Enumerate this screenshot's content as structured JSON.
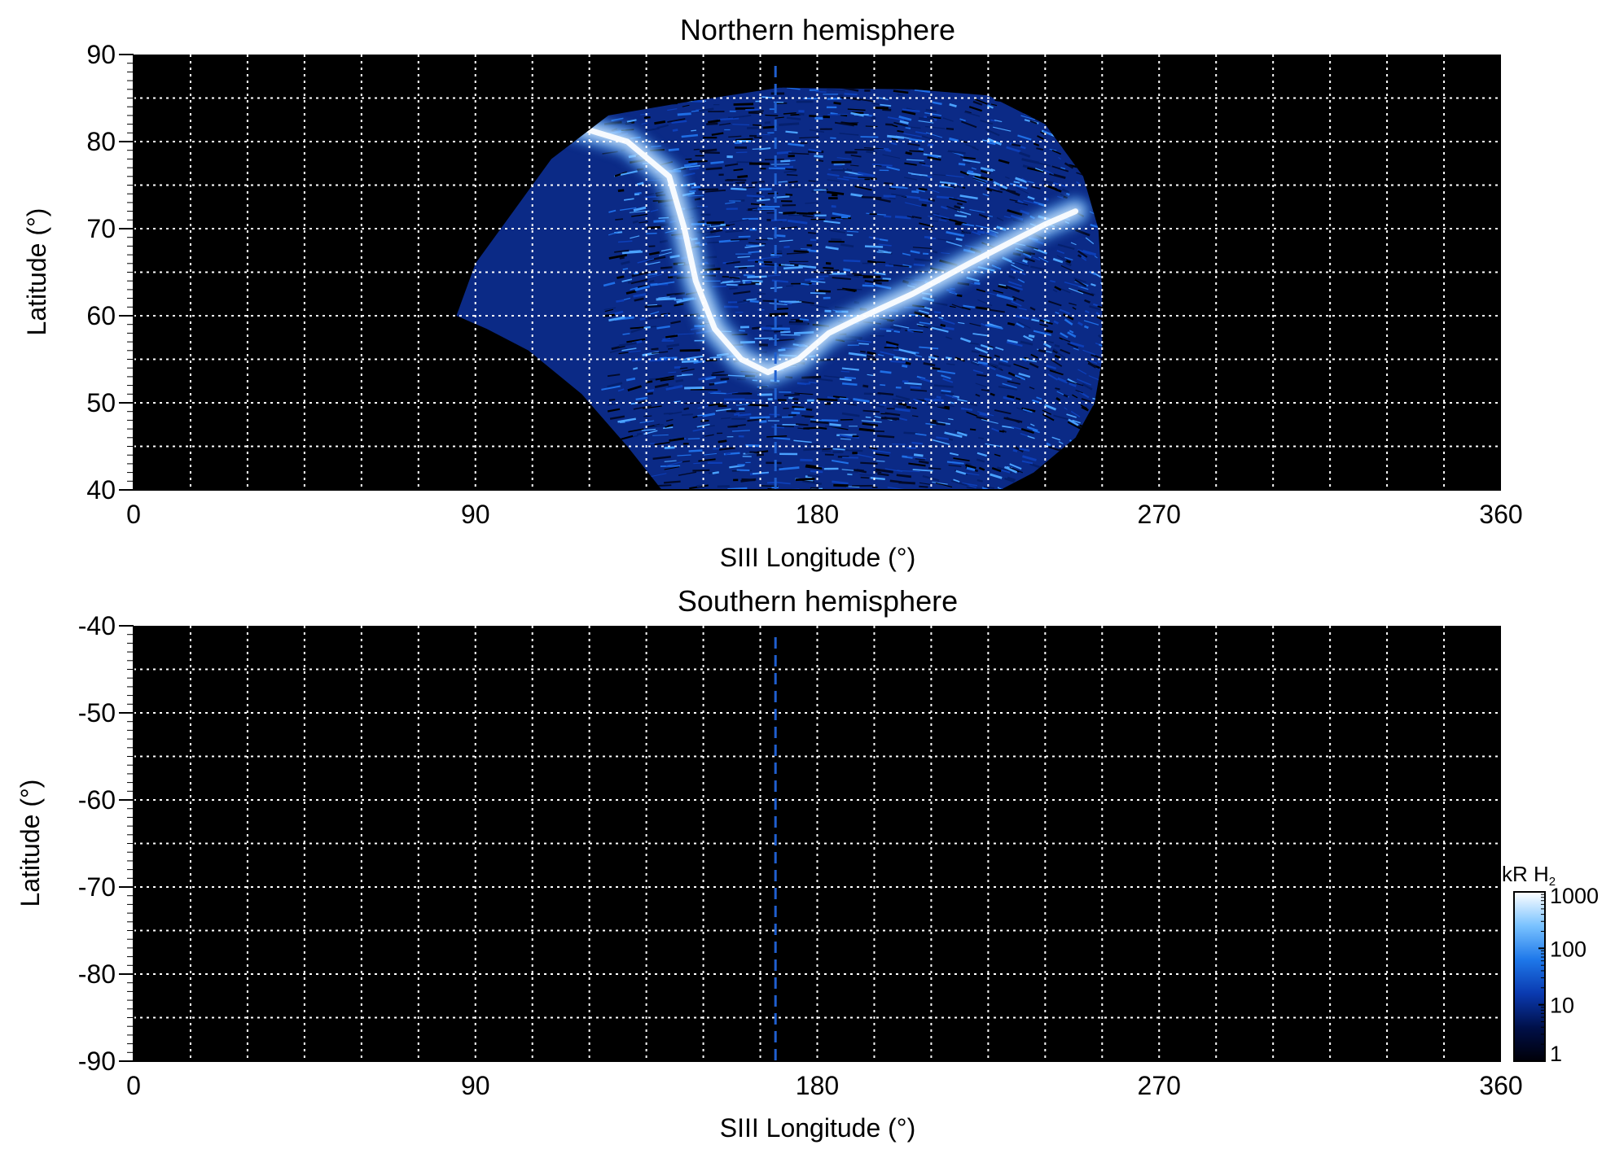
{
  "chart_data": [
    {
      "type": "heatmap",
      "title": "Northern hemisphere",
      "xlabel": "SIII Longitude (°)",
      "ylabel": "Latitude (°)",
      "xlim": [
        0,
        360
      ],
      "ylim": [
        40,
        90
      ],
      "xticks": [
        "0",
        "90",
        "180",
        "270",
        "360"
      ],
      "yticks": [
        "40",
        "50",
        "60",
        "70",
        "80",
        "90"
      ],
      "grid": "on",
      "grid_spacing_longitude_deg": 15,
      "grid_spacing_latitude_deg": 5,
      "dashed_meridian_longitude": 169,
      "image_extent": {
        "top_edge": [
          [
            145,
            84.5
          ],
          [
            170,
            86.2
          ],
          [
            205,
            86.0
          ],
          [
            225,
            85.3
          ]
        ],
        "right_edge": [
          [
            225,
            85.3
          ],
          [
            240,
            82.0
          ],
          [
            250,
            76.0
          ],
          [
            254,
            70.0
          ],
          [
            255,
            63.0
          ],
          [
            255,
            55.0
          ],
          [
            253,
            50.0
          ],
          [
            248,
            46.0
          ],
          [
            237,
            42.0
          ],
          [
            226,
            39.5
          ]
        ],
        "bottom_edge": [
          [
            226,
            39.5
          ],
          [
            140,
            39.5
          ]
        ],
        "left_edge": [
          [
            140,
            39.5
          ],
          [
            130,
            45.0
          ],
          [
            118,
            51.0
          ],
          [
            104,
            56.0
          ],
          [
            93,
            58.5
          ],
          [
            85,
            60.0
          ],
          [
            90,
            66.0
          ],
          [
            100,
            72.0
          ],
          [
            110,
            78.0
          ],
          [
            125,
            83.0
          ],
          [
            145,
            84.5
          ]
        ]
      },
      "main_oval": [
        [
          111,
          82.5
        ],
        [
          130,
          80.0
        ],
        [
          141,
          76.0
        ],
        [
          145,
          70.0
        ],
        [
          148,
          64.0
        ],
        [
          153,
          58.5
        ],
        [
          160,
          55.0
        ],
        [
          167,
          53.5
        ],
        [
          175,
          55.0
        ],
        [
          183,
          58.0
        ],
        [
          190,
          59.5
        ],
        [
          205,
          62.5
        ],
        [
          220,
          66.0
        ],
        [
          240,
          70.5
        ],
        [
          248,
          72.0
        ]
      ],
      "emission_unit": "kR H₂",
      "colorbar": {
        "label": "kR H₂",
        "scale": "log",
        "range": [
          1,
          1000
        ],
        "ticks": [
          "1000",
          "100",
          "10",
          "1"
        ]
      }
    },
    {
      "type": "heatmap",
      "title": "Southern hemisphere",
      "xlabel": "SIII Longitude (°)",
      "ylabel": "Latitude (°)",
      "xlim": [
        0,
        360
      ],
      "ylim": [
        -90,
        -40
      ],
      "xticks": [
        "0",
        "90",
        "180",
        "270",
        "360"
      ],
      "yticks": [
        "-40",
        "-50",
        "-60",
        "-70",
        "-80",
        "-90"
      ],
      "grid": "on",
      "grid_spacing_longitude_deg": 15,
      "grid_spacing_latitude_deg": 5,
      "dashed_meridian_longitude": 169,
      "image_extent": null,
      "colorbar": {
        "label": "kR H₂",
        "scale": "log",
        "range": [
          1,
          1000
        ],
        "ticks": [
          "1000",
          "100",
          "10",
          "1"
        ]
      }
    }
  ],
  "colorbar": {
    "label_main": "kR H",
    "label_sub": "2",
    "ticks": [
      {
        "label": "1000",
        "value": 1000
      },
      {
        "label": "100",
        "value": 100
      },
      {
        "label": "10",
        "value": 10
      },
      {
        "label": "1",
        "value": 1
      }
    ],
    "colors": [
      "#000008",
      "#00104a",
      "#0a3ab0",
      "#1e78ea",
      "#79c2ff",
      "#ffffff"
    ]
  },
  "colors": {
    "background": "#000000",
    "grid": "#ffffff",
    "meridian": "#1f5fcf"
  }
}
